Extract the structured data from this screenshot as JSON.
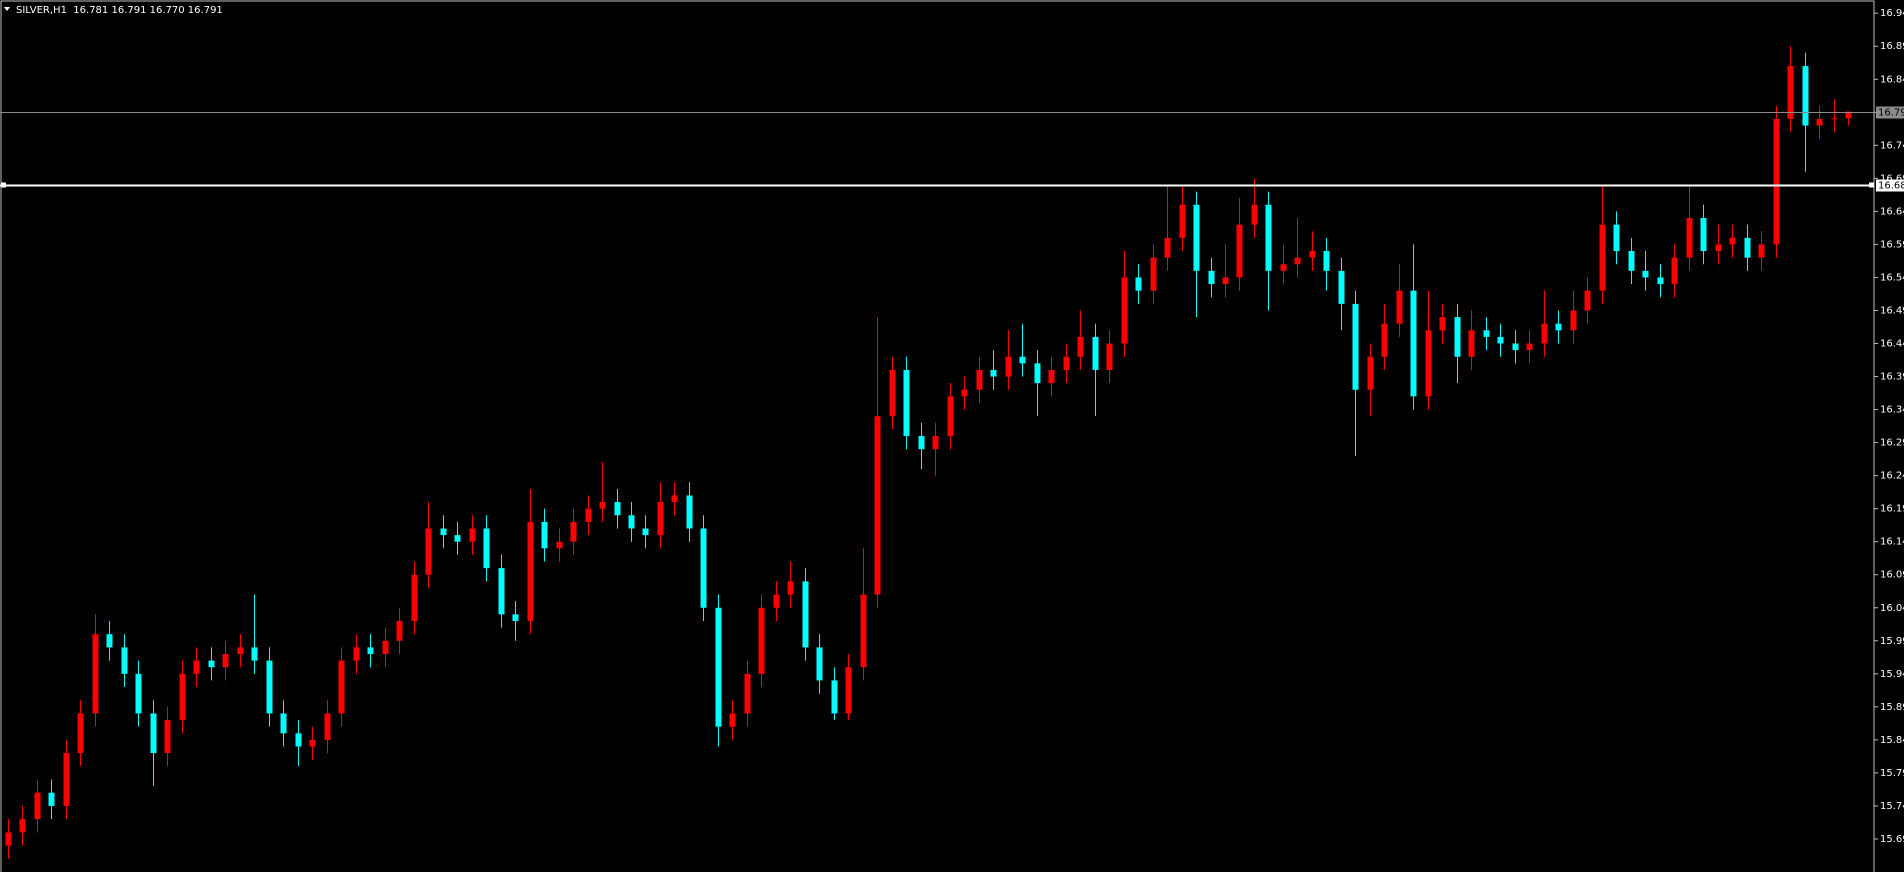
{
  "chart_data": {
    "type": "candlestick",
    "title": "SILVER,H1  16.781 16.791 16.770 16.791",
    "up_color": "#ff0000",
    "down_color": "#00ffff",
    "doji_color": "#00c000",
    "ylim": [
      15.64,
      16.96
    ],
    "yticks": [
      15.69,
      15.74,
      15.79,
      15.84,
      15.89,
      15.94,
      15.99,
      16.04,
      16.09,
      16.14,
      16.19,
      16.24,
      16.29,
      16.34,
      16.39,
      16.44,
      16.49,
      16.54,
      16.59,
      16.64,
      16.69,
      16.74,
      16.79,
      16.84,
      16.89,
      16.94
    ],
    "price_line": {
      "value": 16.791,
      "label": "16.79",
      "color": "#8c8c8c"
    },
    "level_line": {
      "value": 16.68,
      "label": "16.68",
      "color": "#ffffff"
    },
    "open": [
      15.68,
      15.7,
      15.72,
      15.76,
      15.74,
      15.82,
      15.88,
      16.0,
      15.98,
      15.94,
      15.88,
      15.82,
      15.87,
      15.94,
      15.96,
      15.95,
      15.97,
      15.98,
      15.96,
      15.88,
      15.85,
      15.83,
      15.84,
      15.88,
      15.96,
      15.98,
      15.97,
      15.99,
      16.02,
      16.09,
      16.16,
      16.15,
      16.14,
      16.16,
      16.1,
      16.03,
      16.02,
      16.17,
      16.13,
      16.14,
      16.17,
      16.19,
      16.2,
      16.18,
      16.16,
      16.15,
      16.2,
      16.21,
      16.16,
      16.04,
      15.86,
      15.88,
      15.94,
      16.04,
      16.06,
      16.08,
      15.98,
      15.93,
      15.88,
      15.95,
      16.06,
      16.33,
      16.4,
      16.3,
      16.28,
      16.3,
      16.36,
      16.37,
      16.4,
      16.39,
      16.42,
      16.41,
      16.38,
      16.4,
      16.42,
      16.45,
      16.4,
      16.44,
      16.54,
      16.52,
      16.57,
      16.6,
      16.65,
      16.55,
      16.53,
      16.54,
      16.62,
      16.65,
      16.55,
      16.56,
      16.57,
      16.58,
      16.55,
      16.5,
      16.37,
      16.42,
      16.47,
      16.52,
      16.36,
      16.46,
      16.48,
      16.42,
      16.46,
      16.45,
      16.44,
      16.43,
      16.44,
      16.47,
      16.46,
      16.49,
      16.52,
      16.62,
      16.58,
      16.55,
      16.54,
      16.53,
      16.57,
      16.63,
      16.58,
      16.59,
      16.6,
      16.57,
      16.59,
      16.78,
      16.86,
      16.77,
      16.78,
      16.781
    ],
    "high": [
      15.72,
      15.74,
      15.78,
      15.78,
      15.84,
      15.9,
      16.03,
      16.02,
      16.0,
      15.96,
      15.9,
      15.89,
      15.96,
      15.98,
      15.98,
      15.99,
      16.0,
      16.06,
      15.98,
      15.9,
      15.87,
      15.86,
      15.9,
      15.98,
      16.0,
      16.0,
      16.01,
      16.04,
      16.11,
      16.2,
      16.18,
      16.17,
      16.18,
      16.18,
      16.12,
      16.05,
      16.22,
      16.19,
      16.16,
      16.19,
      16.21,
      16.26,
      16.22,
      16.2,
      16.18,
      16.23,
      16.23,
      16.23,
      16.18,
      16.06,
      15.9,
      15.96,
      16.06,
      16.08,
      16.11,
      16.1,
      16.0,
      15.95,
      15.97,
      16.13,
      16.48,
      16.42,
      16.42,
      16.32,
      16.32,
      16.38,
      16.39,
      16.42,
      16.43,
      16.46,
      16.47,
      16.43,
      16.42,
      16.44,
      16.49,
      16.47,
      16.46,
      16.58,
      16.56,
      16.59,
      16.68,
      16.68,
      16.67,
      16.57,
      16.59,
      16.66,
      16.69,
      16.67,
      16.59,
      16.63,
      16.61,
      16.6,
      16.57,
      16.52,
      16.44,
      16.5,
      16.56,
      16.59,
      16.52,
      16.5,
      16.5,
      16.49,
      16.48,
      16.47,
      16.46,
      16.46,
      16.52,
      16.49,
      16.52,
      16.54,
      16.68,
      16.64,
      16.6,
      16.58,
      16.56,
      16.59,
      16.68,
      16.65,
      16.62,
      16.62,
      16.62,
      16.61,
      16.8,
      16.89,
      16.88,
      16.8,
      16.81,
      16.791
    ],
    "low": [
      15.66,
      15.68,
      15.7,
      15.72,
      15.72,
      15.8,
      15.86,
      15.96,
      15.92,
      15.86,
      15.77,
      15.8,
      15.85,
      15.92,
      15.93,
      15.93,
      15.95,
      15.94,
      15.86,
      15.83,
      15.8,
      15.81,
      15.82,
      15.86,
      15.94,
      15.95,
      15.95,
      15.97,
      16.0,
      16.07,
      16.13,
      16.12,
      16.12,
      16.08,
      16.01,
      15.99,
      16.0,
      16.11,
      16.11,
      16.12,
      16.15,
      16.17,
      16.16,
      16.14,
      16.13,
      16.13,
      16.18,
      16.14,
      16.02,
      15.83,
      15.84,
      15.86,
      15.92,
      16.02,
      16.04,
      15.96,
      15.91,
      15.87,
      15.87,
      15.93,
      16.04,
      16.31,
      16.28,
      16.25,
      16.24,
      16.28,
      16.34,
      16.35,
      16.37,
      16.37,
      16.39,
      16.33,
      16.36,
      16.38,
      16.4,
      16.33,
      16.38,
      16.42,
      16.5,
      16.5,
      16.55,
      16.58,
      16.48,
      16.51,
      16.51,
      16.52,
      16.6,
      16.49,
      16.53,
      16.54,
      16.55,
      16.52,
      16.46,
      16.27,
      16.33,
      16.4,
      16.45,
      16.34,
      16.34,
      16.44,
      16.38,
      16.4,
      16.43,
      16.42,
      16.41,
      16.41,
      16.42,
      16.44,
      16.44,
      16.47,
      16.5,
      16.56,
      16.53,
      16.52,
      16.51,
      16.51,
      16.55,
      16.56,
      16.56,
      16.57,
      16.55,
      16.55,
      16.57,
      16.76,
      16.7,
      16.75,
      16.76,
      16.77
    ],
    "close": [
      15.7,
      15.72,
      15.76,
      15.74,
      15.82,
      15.88,
      16.0,
      15.98,
      15.94,
      15.88,
      15.82,
      15.87,
      15.94,
      15.96,
      15.95,
      15.97,
      15.98,
      15.96,
      15.88,
      15.85,
      15.83,
      15.84,
      15.88,
      15.96,
      15.98,
      15.97,
      15.99,
      16.02,
      16.09,
      16.16,
      16.15,
      16.14,
      16.16,
      16.1,
      16.03,
      16.02,
      16.17,
      16.13,
      16.14,
      16.17,
      16.19,
      16.2,
      16.18,
      16.16,
      16.15,
      16.2,
      16.21,
      16.16,
      16.04,
      15.86,
      15.88,
      15.94,
      16.04,
      16.06,
      16.08,
      15.98,
      15.93,
      15.88,
      15.95,
      16.06,
      16.33,
      16.4,
      16.3,
      16.28,
      16.3,
      16.36,
      16.37,
      16.4,
      16.39,
      16.42,
      16.41,
      16.38,
      16.4,
      16.42,
      16.45,
      16.4,
      16.44,
      16.54,
      16.52,
      16.57,
      16.6,
      16.65,
      16.55,
      16.53,
      16.54,
      16.62,
      16.65,
      16.55,
      16.56,
      16.57,
      16.58,
      16.55,
      16.5,
      16.37,
      16.42,
      16.47,
      16.52,
      16.36,
      16.46,
      16.48,
      16.42,
      16.46,
      16.45,
      16.44,
      16.43,
      16.44,
      16.47,
      16.46,
      16.49,
      16.52,
      16.62,
      16.58,
      16.55,
      16.54,
      16.53,
      16.57,
      16.63,
      16.58,
      16.59,
      16.6,
      16.57,
      16.59,
      16.78,
      16.86,
      16.77,
      16.78,
      16.781,
      16.791
    ]
  }
}
